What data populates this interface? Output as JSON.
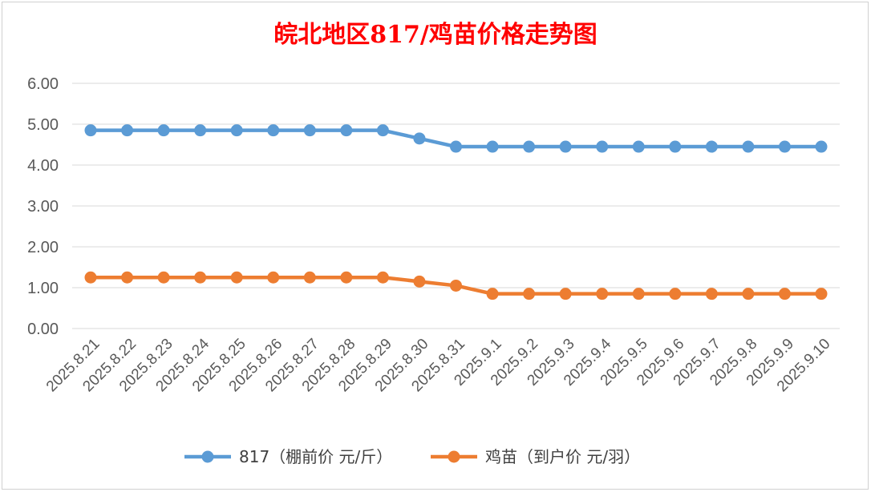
{
  "chart_data": {
    "type": "line",
    "title": "皖北地区817/鸡苗价格走势图",
    "xlabel": "",
    "ylabel": "",
    "ylim": [
      0,
      6
    ],
    "yticks": [
      "0.00",
      "1.00",
      "2.00",
      "3.00",
      "4.00",
      "5.00",
      "6.00"
    ],
    "grid": true,
    "legend_position": "bottom",
    "categories": [
      "2025.8.21",
      "2025.8.22",
      "2025.8.23",
      "2025.8.24",
      "2025.8.25",
      "2025.8.26",
      "2025.8.27",
      "2025.8.28",
      "2025.8.29",
      "2025.8.30",
      "2025.8.31",
      "2025.9.1",
      "2025.9.2",
      "2025.9.3",
      "2025.9.4",
      "2025.9.5",
      "2025.9.6",
      "2025.9.7",
      "2025.9.8",
      "2025.9.9",
      "2025.9.10"
    ],
    "series": [
      {
        "name": "817（棚前价 元/斤）",
        "color": "#5b9bd5",
        "values": [
          4.85,
          4.85,
          4.85,
          4.85,
          4.85,
          4.85,
          4.85,
          4.85,
          4.85,
          4.65,
          4.45,
          4.45,
          4.45,
          4.45,
          4.45,
          4.45,
          4.45,
          4.45,
          4.45,
          4.45,
          4.45
        ]
      },
      {
        "name": "鸡苗（到户价 元/羽）",
        "color": "#ed7d31",
        "values": [
          1.25,
          1.25,
          1.25,
          1.25,
          1.25,
          1.25,
          1.25,
          1.25,
          1.25,
          1.15,
          1.05,
          0.85,
          0.85,
          0.85,
          0.85,
          0.85,
          0.85,
          0.85,
          0.85,
          0.85,
          0.85
        ]
      }
    ]
  }
}
